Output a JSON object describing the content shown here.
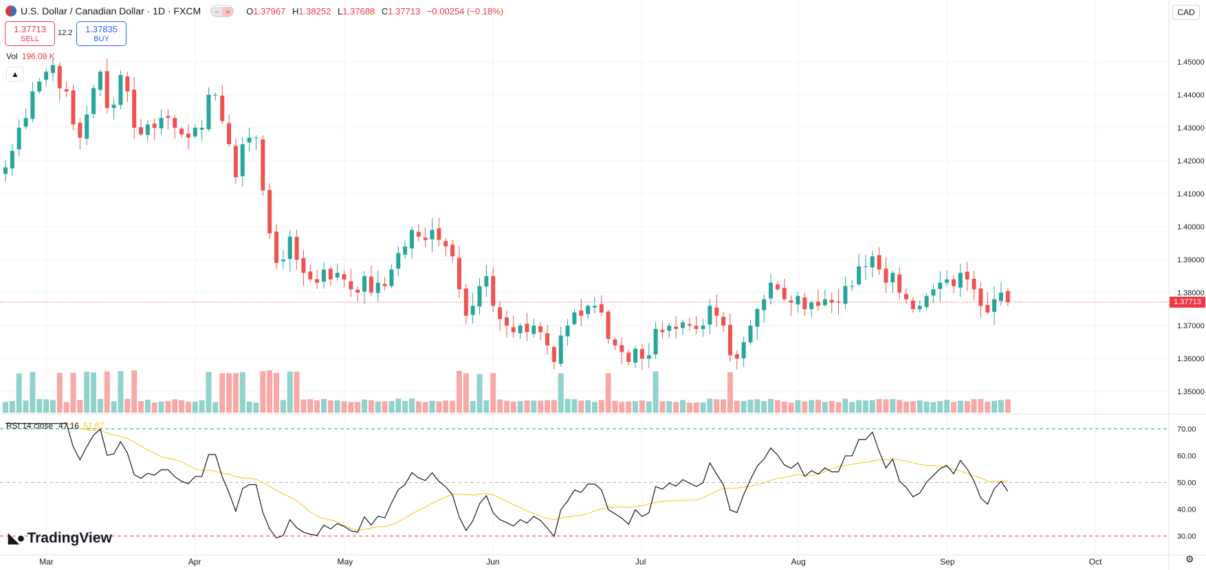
{
  "header": {
    "title": "U.S. Dollar / Canadian Dollar · 1D · FXCM",
    "pill_a": "−",
    "pill_b": "≈",
    "o_label": "O",
    "o_value": "1.37967",
    "h_label": "H",
    "h_value": "1.38252",
    "l_label": "L",
    "l_value": "1.37688",
    "c_label": "C",
    "c_value": "1.37713",
    "change": "−0.00254 (−0.18%)"
  },
  "trade": {
    "sell_price": "1.37713",
    "sell_label": "SELL",
    "spread": "12.2",
    "buy_price": "1.37835",
    "buy_label": "BUY"
  },
  "volume": {
    "label": "Vol",
    "value": "196.08 K"
  },
  "rsi": {
    "label": "RSI 14 close",
    "value": "47.16",
    "ma_value": "51.67"
  },
  "currency": "CAD",
  "current_price_label": "1.37713",
  "logo": "TradingView",
  "colors": {
    "up": "#26a69a",
    "down": "#ef5350",
    "up_vol": "#92d2cc",
    "down_vol": "#f7a9a7",
    "rsi": "#131722",
    "rsi_ma": "#f5c518"
  },
  "chart_data": [
    {
      "type": "candlestick",
      "title": "U.S. Dollar / Canadian Dollar · 1D · FXCM",
      "price_range": [
        1.344,
        1.4625
      ],
      "y_ticks": [
        "1.35000",
        "1.36000",
        "1.37000",
        "1.38000",
        "1.39000",
        "1.40000",
        "1.41000",
        "1.42000",
        "1.43000",
        "1.44000",
        "1.45000"
      ],
      "x_ticks": [
        "Mar",
        "Apr",
        "May",
        "Jun",
        "Jul",
        "Aug",
        "Sep",
        "Oct"
      ],
      "current_price": 1.37713,
      "grid": true,
      "closes": [
        1.418,
        1.423,
        1.43,
        1.433,
        1.441,
        1.444,
        1.447,
        1.449,
        1.442,
        1.441,
        1.431,
        1.427,
        1.434,
        1.442,
        1.447,
        1.436,
        1.437,
        1.446,
        1.441,
        1.43,
        1.428,
        1.431,
        1.43,
        1.433,
        1.433,
        1.43,
        1.428,
        1.427,
        1.43,
        1.43,
        1.44,
        1.44,
        1.432,
        1.425,
        1.415,
        1.425,
        1.427,
        1.427,
        1.411,
        1.398,
        1.389,
        1.39,
        1.397,
        1.39,
        1.386,
        1.384,
        1.383,
        1.387,
        1.384,
        1.386,
        1.384,
        1.381,
        1.38,
        1.385,
        1.38,
        1.383,
        1.382,
        1.387,
        1.392,
        1.394,
        1.399,
        1.397,
        1.396,
        1.399,
        1.396,
        1.394,
        1.391,
        1.381,
        1.373,
        1.376,
        1.382,
        1.385,
        1.376,
        1.372,
        1.37,
        1.368,
        1.37,
        1.368,
        1.37,
        1.368,
        1.364,
        1.359,
        1.367,
        1.37,
        1.374,
        1.373,
        1.376,
        1.376,
        1.374,
        1.366,
        1.364,
        1.362,
        1.359,
        1.363,
        1.36,
        1.361,
        1.369,
        1.368,
        1.37,
        1.369,
        1.371,
        1.37,
        1.369,
        1.37,
        1.376,
        1.373,
        1.37,
        1.361,
        1.36,
        1.365,
        1.37,
        1.375,
        1.378,
        1.383,
        1.381,
        1.378,
        1.377,
        1.379,
        1.375,
        1.377,
        1.376,
        1.378,
        1.377,
        1.377,
        1.382,
        1.382,
        1.388,
        1.388,
        1.391,
        1.387,
        1.383,
        1.386,
        1.38,
        1.378,
        1.375,
        1.376,
        1.379,
        1.381,
        1.383,
        1.384,
        1.382,
        1.386,
        1.384,
        1.381,
        1.376,
        1.374,
        1.378,
        1.38,
        1.3771
      ],
      "rsi_range": [
        25,
        75
      ],
      "rsi_levels": [
        30,
        50,
        70
      ],
      "rsi_ticks": [
        "30.00",
        "40.00",
        "50.00",
        "60.00",
        "70.00"
      ]
    }
  ]
}
